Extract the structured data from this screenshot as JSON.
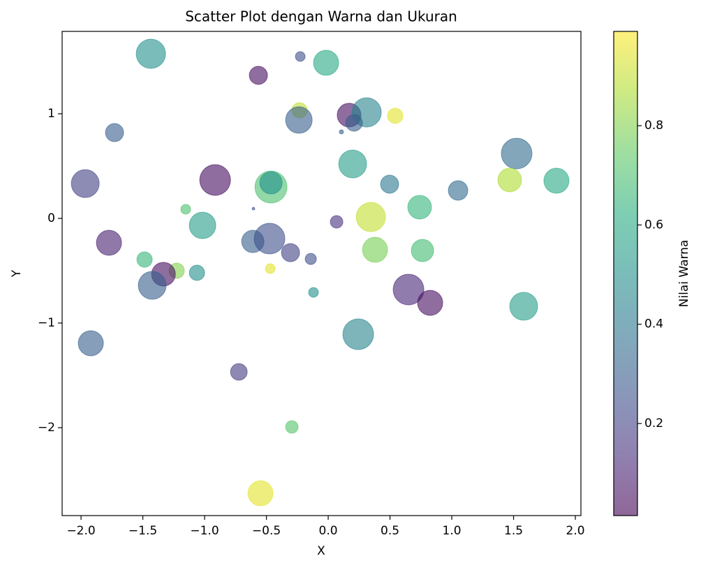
{
  "chart_data": {
    "type": "scatter",
    "title": "Scatter Plot dengan Warna dan Ukuran",
    "x_label": "X",
    "y_label": "Y",
    "colorbar_label": "Nilai Warna",
    "colormap": "viridis",
    "alpha": 0.6,
    "x": [
      -1.435,
      -0.226,
      -0.017,
      -0.565,
      -0.232,
      -0.237,
      0.169,
      0.311,
      0.209,
      0.107,
      0.542,
      -1.729,
      1.525,
      0.198,
      -1.966,
      -0.915,
      -0.463,
      -0.463,
      0.497,
      1.051,
      1.469,
      1.847,
      -1.153,
      -0.605,
      0.74,
      0.345,
      0.068,
      -1.017,
      -1.774,
      -0.61,
      -0.475,
      -0.305,
      -0.141,
      0.379,
      0.763,
      -1.486,
      -1.226,
      -1.333,
      -1.424,
      -1.062,
      -0.469,
      -0.119,
      0.65,
      0.825,
      1.582,
      0.243,
      -1.921,
      -0.723,
      -0.294,
      -0.548
    ],
    "y": [
      1.573,
      1.547,
      1.487,
      1.367,
      1.033,
      0.94,
      0.987,
      1.013,
      0.913,
      0.827,
      0.98,
      0.82,
      0.62,
      0.52,
      0.333,
      0.367,
      0.3,
      0.34,
      0.327,
      0.267,
      0.367,
      0.36,
      0.087,
      0.093,
      0.107,
      0.013,
      -0.033,
      -0.067,
      -0.233,
      -0.22,
      -0.193,
      -0.327,
      -0.387,
      -0.3,
      -0.307,
      -0.393,
      -0.5,
      -0.533,
      -0.64,
      -0.52,
      -0.48,
      -0.707,
      -0.68,
      -0.807,
      -0.84,
      -1.107,
      -1.193,
      -1.467,
      -1.993,
      -2.627
    ],
    "colors": [
      0.5,
      0.25,
      0.6,
      0.05,
      0.9,
      0.3,
      0.05,
      0.45,
      0.3,
      0.3,
      0.95,
      0.3,
      0.35,
      0.55,
      0.2,
      0.05,
      0.7,
      0.5,
      0.4,
      0.35,
      0.87,
      0.6,
      0.7,
      0.25,
      0.65,
      0.9,
      0.15,
      0.55,
      0.1,
      0.3,
      0.25,
      0.2,
      0.25,
      0.78,
      0.68,
      0.65,
      0.8,
      0.05,
      0.3,
      0.5,
      0.95,
      0.5,
      0.12,
      0.05,
      0.55,
      0.45,
      0.3,
      0.18,
      0.72,
      0.95
    ],
    "sizes": [
      585,
      65,
      430,
      224,
      160,
      480,
      384,
      585,
      190,
      12,
      160,
      224,
      640,
      530,
      530,
      640,
      700,
      340,
      224,
      260,
      384,
      430,
      65,
      5,
      384,
      585,
      107,
      480,
      430,
      340,
      640,
      224,
      85,
      430,
      340,
      160,
      160,
      384,
      530,
      160,
      65,
      65,
      640,
      430,
      530,
      640,
      430,
      190,
      107,
      430
    ],
    "xlim": [
      -2.153,
      2.045
    ],
    "ylim": [
      -2.84,
      1.787
    ],
    "clim": [
      0.0145,
      0.99
    ],
    "xticks": [
      {
        "value": -2.0,
        "label": "−2.0"
      },
      {
        "value": -1.5,
        "label": "−1.5"
      },
      {
        "value": -1.0,
        "label": "−1.0"
      },
      {
        "value": -0.5,
        "label": "−0.5"
      },
      {
        "value": 0.0,
        "label": "0.0"
      },
      {
        "value": 0.5,
        "label": "0.5"
      },
      {
        "value": 1.0,
        "label": "1.0"
      },
      {
        "value": 1.5,
        "label": "1.5"
      },
      {
        "value": 2.0,
        "label": "2.0"
      }
    ],
    "yticks": [
      {
        "value": -2,
        "label": "−2"
      },
      {
        "value": -1,
        "label": "−1"
      },
      0,
      1
    ],
    "cticks": [
      0.2,
      0.4,
      0.6,
      0.8
    ]
  }
}
